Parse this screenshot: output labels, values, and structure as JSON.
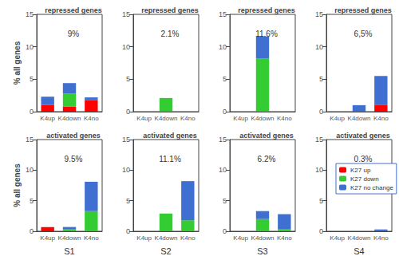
{
  "chart_data": [
    {
      "type": "bar",
      "title": "repressed genes",
      "annotation": "9%",
      "ylabel": "% all genes",
      "stacked": true,
      "categories": [
        "K4up",
        "K4down",
        "K4no"
      ],
      "ylim": [
        0,
        15
      ],
      "yticks": [
        0,
        5,
        10,
        15
      ],
      "series": [
        {
          "name": "K27 up",
          "color": "#ff0000",
          "values": [
            1.0,
            0.8,
            1.8
          ]
        },
        {
          "name": "K27 down",
          "color": "#33cc33",
          "values": [
            0,
            2.0,
            0
          ]
        },
        {
          "name": "K27 no change",
          "color": "#3f6fd1",
          "values": [
            1.3,
            1.6,
            0.4
          ]
        }
      ]
    },
    {
      "type": "bar",
      "title": "repressed genes",
      "annotation": "2.1%",
      "stacked": true,
      "categories": [
        "K4up",
        "K4down",
        "K4no"
      ],
      "ylim": [
        0,
        15
      ],
      "yticks": [
        0,
        5,
        10,
        15
      ],
      "series": [
        {
          "name": "K27 up",
          "color": "#ff0000",
          "values": [
            0,
            0,
            0
          ]
        },
        {
          "name": "K27 down",
          "color": "#33cc33",
          "values": [
            0,
            2.1,
            0
          ]
        },
        {
          "name": "K27 no change",
          "color": "#3f6fd1",
          "values": [
            0,
            0,
            0
          ]
        }
      ]
    },
    {
      "type": "bar",
      "title": "repressed genes",
      "annotation": "11.6%",
      "stacked": true,
      "categories": [
        "K4up",
        "K4down",
        "K4no"
      ],
      "ylim": [
        0,
        15
      ],
      "yticks": [
        0,
        5,
        10,
        15
      ],
      "series": [
        {
          "name": "K27 up",
          "color": "#ff0000",
          "values": [
            0,
            0,
            0
          ]
        },
        {
          "name": "K27 down",
          "color": "#33cc33",
          "values": [
            0,
            8.2,
            0
          ]
        },
        {
          "name": "K27 no change",
          "color": "#3f6fd1",
          "values": [
            0,
            3.4,
            0
          ]
        }
      ]
    },
    {
      "type": "bar",
      "title": "repressed genes",
      "annotation": "6,5%",
      "stacked": true,
      "categories": [
        "K4up",
        "K4down",
        "K4no"
      ],
      "ylim": [
        0,
        15
      ],
      "yticks": [
        0,
        5,
        10,
        15
      ],
      "series": [
        {
          "name": "K27 up",
          "color": "#ff0000",
          "values": [
            0,
            0,
            1.0
          ]
        },
        {
          "name": "K27 down",
          "color": "#33cc33",
          "values": [
            0,
            0,
            0
          ]
        },
        {
          "name": "K27 no change",
          "color": "#3f6fd1",
          "values": [
            0,
            1.0,
            4.5
          ]
        }
      ]
    },
    {
      "type": "bar",
      "title": "activated genes",
      "annotation": "9.5%",
      "ylabel": "% all genes",
      "xlabel": "S1",
      "stacked": true,
      "categories": [
        "K4up",
        "K4down",
        "K4no"
      ],
      "ylim": [
        0,
        15
      ],
      "yticks": [
        0,
        5,
        10,
        15
      ],
      "series": [
        {
          "name": "K27 up",
          "color": "#ff0000",
          "values": [
            0.7,
            0,
            0
          ]
        },
        {
          "name": "K27 down",
          "color": "#33cc33",
          "values": [
            0,
            0.3,
            3.3
          ]
        },
        {
          "name": "K27 no change",
          "color": "#3f6fd1",
          "values": [
            0,
            0.4,
            4.8
          ]
        }
      ]
    },
    {
      "type": "bar",
      "title": "activated genes",
      "annotation": "11.1%",
      "xlabel": "S2",
      "stacked": true,
      "categories": [
        "K4up",
        "K4down",
        "K4no"
      ],
      "ylim": [
        0,
        15
      ],
      "yticks": [
        0,
        5,
        10,
        15
      ],
      "series": [
        {
          "name": "K27 up",
          "color": "#ff0000",
          "values": [
            0,
            0,
            0
          ]
        },
        {
          "name": "K27 down",
          "color": "#33cc33",
          "values": [
            0,
            2.9,
            1.8
          ]
        },
        {
          "name": "K27 no change",
          "color": "#3f6fd1",
          "values": [
            0,
            0,
            6.4
          ]
        }
      ]
    },
    {
      "type": "bar",
      "title": "activated genes",
      "annotation": "6.2%",
      "xlabel": "S3",
      "stacked": true,
      "categories": [
        "K4up",
        "K4down",
        "K4no"
      ],
      "ylim": [
        0,
        15
      ],
      "yticks": [
        0,
        5,
        10,
        15
      ],
      "series": [
        {
          "name": "K27 up",
          "color": "#ff0000",
          "values": [
            0,
            0,
            0
          ]
        },
        {
          "name": "K27 down",
          "color": "#33cc33",
          "values": [
            0,
            2.0,
            0.3
          ]
        },
        {
          "name": "K27 no change",
          "color": "#3f6fd1",
          "values": [
            0,
            1.3,
            2.5
          ]
        }
      ]
    },
    {
      "type": "bar",
      "title": "activated genes",
      "annotation": "0.3%",
      "xlabel": "S4",
      "stacked": true,
      "legend": "upper right",
      "categories": [
        "K4up",
        "K4down",
        "K4no"
      ],
      "ylim": [
        0,
        15
      ],
      "yticks": [
        0,
        5,
        10,
        15
      ],
      "series": [
        {
          "name": "K27 up",
          "color": "#ff0000",
          "values": [
            0,
            0,
            0
          ]
        },
        {
          "name": "K27 down",
          "color": "#33cc33",
          "values": [
            0,
            0,
            0
          ]
        },
        {
          "name": "K27 no change",
          "color": "#3f6fd1",
          "values": [
            0,
            0,
            0.3
          ]
        }
      ]
    }
  ]
}
